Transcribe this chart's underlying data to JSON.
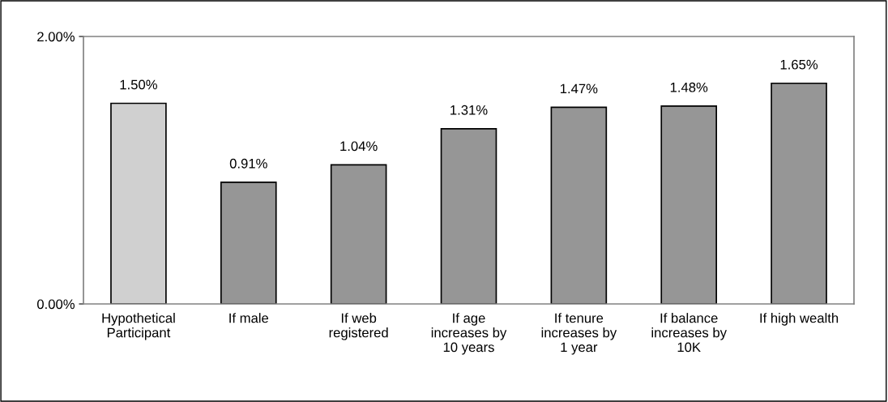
{
  "chart_data": {
    "type": "bar",
    "categories": [
      "Hypothetical\nParticipant",
      "If male",
      "If web\nregistered",
      "If age\nincreases by\n10 years",
      "If tenure\nincreases by\n1 year",
      "If balance\nincreases by\n10K",
      "If high wealth"
    ],
    "values": [
      1.5,
      0.91,
      1.04,
      1.31,
      1.47,
      1.48,
      1.65
    ],
    "value_labels": [
      "1.50%",
      "0.91%",
      "1.04%",
      "1.31%",
      "1.47%",
      "1.48%",
      "1.65%"
    ],
    "colors": [
      "#d0d0d0",
      "#969696",
      "#969696",
      "#969696",
      "#969696",
      "#969696",
      "#969696"
    ],
    "ylim": [
      0,
      2
    ],
    "yticks": [
      {
        "value": 0,
        "label": "0.00%"
      },
      {
        "value": 2,
        "label": "2.00%"
      }
    ],
    "grid": false,
    "legend": false
  }
}
